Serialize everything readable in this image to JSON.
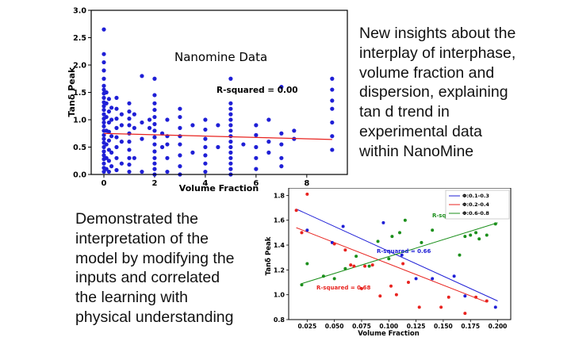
{
  "text_right": [
    "New insights about the",
    "interplay of interphase,",
    "volume fraction and",
    "dispersion, explaining",
    "tan d trend in",
    "experimental data",
    "within NanoMine"
  ],
  "text_left": [
    "Demonstrated the",
    "interpretation of the",
    "model by modifying the",
    "inputs and correlated",
    "the learning with",
    "physical understanding"
  ],
  "colors": {
    "blue": "#1f1fd6",
    "red": "#e8231f",
    "green": "#1b8f1b"
  },
  "chart_data": [
    {
      "type": "scatter",
      "annotation": "Nanomine Data",
      "xlabel": "Volume Fraction",
      "ylabel": "Tanδ Peak",
      "xlim": [
        -0.5,
        9.6
      ],
      "ylim": [
        0.0,
        3.0
      ],
      "xticks": [
        "0",
        "2",
        "4",
        "6",
        "8"
      ],
      "yticks": [
        "0.0",
        "0.5",
        "1.0",
        "1.5",
        "2.0",
        "2.5",
        "3.0"
      ],
      "grid": false,
      "fit_label": "R-squared = 0.00",
      "fit_line": {
        "x0": 0.0,
        "y0": 0.75,
        "x1": 9.0,
        "y1": 0.64
      },
      "series": [
        {
          "color": "blue",
          "points": [
            [
              0,
              0.05
            ],
            [
              0,
              0.12
            ],
            [
              0,
              0.2
            ],
            [
              0,
              0.28
            ],
            [
              0,
              0.35
            ],
            [
              0,
              0.42
            ],
            [
              0,
              0.5
            ],
            [
              0,
              0.58
            ],
            [
              0,
              0.65
            ],
            [
              0,
              0.72
            ],
            [
              0,
              0.8
            ],
            [
              0,
              0.88
            ],
            [
              0,
              0.95
            ],
            [
              0,
              1.02
            ],
            [
              0,
              1.1
            ],
            [
              0,
              1.18
            ],
            [
              0,
              1.25
            ],
            [
              0,
              1.32
            ],
            [
              0,
              1.4
            ],
            [
              0,
              1.48
            ],
            [
              0,
              1.55
            ],
            [
              0,
              1.62
            ],
            [
              0,
              1.75
            ],
            [
              0,
              1.9
            ],
            [
              0,
              2.05
            ],
            [
              0,
              2.2
            ],
            [
              0,
              2.65
            ],
            [
              0.1,
              0.1
            ],
            [
              0.1,
              0.3
            ],
            [
              0.1,
              0.55
            ],
            [
              0.1,
              0.8
            ],
            [
              0.1,
              1.05
            ],
            [
              0.1,
              1.3
            ],
            [
              0.1,
              1.5
            ],
            [
              0.2,
              0.05
            ],
            [
              0.2,
              0.25
            ],
            [
              0.2,
              0.45
            ],
            [
              0.2,
              0.62
            ],
            [
              0.2,
              0.78
            ],
            [
              0.2,
              0.95
            ],
            [
              0.2,
              1.15
            ],
            [
              0.2,
              1.38
            ],
            [
              0.3,
              0.15
            ],
            [
              0.3,
              0.4
            ],
            [
              0.3,
              0.7
            ],
            [
              0.3,
              1.0
            ],
            [
              0.3,
              1.22
            ],
            [
              0.5,
              0.08
            ],
            [
              0.5,
              0.3
            ],
            [
              0.5,
              0.5
            ],
            [
              0.5,
              0.68
            ],
            [
              0.5,
              0.85
            ],
            [
              0.5,
              1.02
            ],
            [
              0.5,
              1.2
            ],
            [
              0.5,
              1.4
            ],
            [
              0.7,
              0.2
            ],
            [
              0.7,
              0.6
            ],
            [
              0.7,
              0.9
            ],
            [
              0.7,
              1.1
            ],
            [
              1,
              0.05
            ],
            [
              1,
              0.18
            ],
            [
              1,
              0.3
            ],
            [
              1,
              0.45
            ],
            [
              1,
              0.6
            ],
            [
              1,
              0.75
            ],
            [
              1,
              0.9
            ],
            [
              1,
              1.02
            ],
            [
              1,
              1.15
            ],
            [
              1,
              1.3
            ],
            [
              1.2,
              0.3
            ],
            [
              1.2,
              0.85
            ],
            [
              1.2,
              1.1
            ],
            [
              1.5,
              0.05
            ],
            [
              1.5,
              0.65
            ],
            [
              1.5,
              0.95
            ],
            [
              1.5,
              1.8
            ],
            [
              1.8,
              0.85
            ],
            [
              1.8,
              1.0
            ],
            [
              2,
              0.0
            ],
            [
              2,
              0.1
            ],
            [
              2,
              0.2
            ],
            [
              2,
              0.3
            ],
            [
              2,
              0.42
            ],
            [
              2,
              0.55
            ],
            [
              2,
              0.68
            ],
            [
              2,
              0.8
            ],
            [
              2,
              0.92
            ],
            [
              2,
              1.05
            ],
            [
              2,
              1.18
            ],
            [
              2,
              1.3
            ],
            [
              2,
              1.45
            ],
            [
              2,
              1.75
            ],
            [
              2.3,
              0.5
            ],
            [
              2.3,
              0.75
            ],
            [
              2.5,
              0.05
            ],
            [
              2.5,
              0.3
            ],
            [
              2.5,
              0.55
            ],
            [
              2.5,
              0.7
            ],
            [
              2.5,
              1.0
            ],
            [
              3,
              0.0
            ],
            [
              3,
              0.15
            ],
            [
              3,
              0.35
            ],
            [
              3,
              0.55
            ],
            [
              3,
              0.7
            ],
            [
              3,
              0.85
            ],
            [
              3,
              1.05
            ],
            [
              3,
              1.2
            ],
            [
              3.5,
              0.4
            ],
            [
              3.5,
              0.9
            ],
            [
              4,
              0.05
            ],
            [
              4,
              0.2
            ],
            [
              4,
              0.35
            ],
            [
              4,
              0.5
            ],
            [
              4,
              0.65
            ],
            [
              4,
              0.82
            ],
            [
              4,
              1.0
            ],
            [
              4.5,
              0.5
            ],
            [
              4.5,
              0.9
            ],
            [
              5,
              0.0
            ],
            [
              5,
              0.1
            ],
            [
              5,
              0.2
            ],
            [
              5,
              0.3
            ],
            [
              5,
              0.4
            ],
            [
              5,
              0.5
            ],
            [
              5,
              0.6
            ],
            [
              5,
              0.7
            ],
            [
              5,
              0.8
            ],
            [
              5,
              0.9
            ],
            [
              5,
              1.0
            ],
            [
              5,
              1.1
            ],
            [
              5,
              1.2
            ],
            [
              5,
              1.3
            ],
            [
              5,
              1.75
            ],
            [
              5.5,
              0.55
            ],
            [
              6,
              0.1
            ],
            [
              6,
              0.3
            ],
            [
              6,
              0.5
            ],
            [
              6,
              0.72
            ],
            [
              6,
              0.9
            ],
            [
              6.5,
              0.4
            ],
            [
              6.5,
              0.6
            ],
            [
              6.5,
              1.0
            ],
            [
              7,
              0.15
            ],
            [
              7,
              0.3
            ],
            [
              7,
              0.55
            ],
            [
              7,
              0.75
            ],
            [
              7,
              1.6
            ],
            [
              7.5,
              0.65
            ],
            [
              7.5,
              0.8
            ],
            [
              9,
              0.45
            ],
            [
              9,
              0.7
            ],
            [
              9,
              0.95
            ],
            [
              9,
              1.2
            ],
            [
              9,
              1.35
            ],
            [
              9,
              1.55
            ],
            [
              9,
              1.75
            ]
          ]
        }
      ]
    },
    {
      "type": "scatter",
      "xlabel": "Volume Fraction",
      "ylabel": "Tanδ Peak",
      "xlim": [
        0.008,
        0.212
      ],
      "ylim": [
        0.8,
        1.86
      ],
      "xticks": [
        "0.025",
        "0.050",
        "0.075",
        "0.100",
        "0.125",
        "0.150",
        "0.175",
        "0.200"
      ],
      "yticks": [
        "0.8",
        "1.0",
        "1.2",
        "1.4",
        "1.6",
        "1.8"
      ],
      "legend_position": "top-right",
      "series": [
        {
          "name": "Φ:0.1-0.3",
          "color": "blue",
          "r2_label": "R-squared = 0.66",
          "fit": {
            "x0": 0.015,
            "y0": 1.69,
            "x1": 0.2,
            "y1": 0.95
          },
          "points": [
            [
              0.025,
              1.52
            ],
            [
              0.048,
              1.42
            ],
            [
              0.058,
              1.55
            ],
            [
              0.095,
              1.58
            ],
            [
              0.112,
              1.32
            ],
            [
              0.125,
              1.13
            ],
            [
              0.14,
              1.13
            ],
            [
              0.16,
              1.15
            ],
            [
              0.17,
              0.99
            ],
            [
              0.198,
              0.9
            ]
          ]
        },
        {
          "name": "Φ:0.2-0.4",
          "color": "red",
          "r2_label": "R-squared = 0.68",
          "fit": {
            "x0": 0.015,
            "y0": 1.54,
            "x1": 0.19,
            "y1": 0.94
          },
          "points": [
            [
              0.015,
              1.68
            ],
            [
              0.02,
              1.5
            ],
            [
              0.025,
              1.81
            ],
            [
              0.05,
              1.41
            ],
            [
              0.06,
              1.36
            ],
            [
              0.065,
              1.24
            ],
            [
              0.068,
              1.23
            ],
            [
              0.075,
              1.05
            ],
            [
              0.078,
              1.23
            ],
            [
              0.085,
              1.24
            ],
            [
              0.092,
              0.99
            ],
            [
              0.102,
              1.07
            ],
            [
              0.107,
              1.0
            ],
            [
              0.113,
              1.25
            ],
            [
              0.118,
              1.1
            ],
            [
              0.128,
              0.9
            ],
            [
              0.148,
              0.9
            ],
            [
              0.155,
              0.98
            ],
            [
              0.17,
              0.85
            ],
            [
              0.18,
              0.98
            ],
            [
              0.19,
              0.95
            ]
          ]
        },
        {
          "name": "Φ:0.6-0.8",
          "color": "green",
          "r2_label": "R-squared = 0.63",
          "fit": {
            "x0": 0.02,
            "y0": 1.09,
            "x1": 0.2,
            "y1": 1.58
          },
          "points": [
            [
              0.02,
              1.08
            ],
            [
              0.025,
              1.25
            ],
            [
              0.04,
              1.15
            ],
            [
              0.05,
              1.13
            ],
            [
              0.06,
              1.21
            ],
            [
              0.07,
              1.31
            ],
            [
              0.082,
              1.23
            ],
            [
              0.09,
              1.43
            ],
            [
              0.1,
              1.29
            ],
            [
              0.103,
              1.47
            ],
            [
              0.11,
              1.5
            ],
            [
              0.115,
              1.6
            ],
            [
              0.13,
              1.42
            ],
            [
              0.14,
              1.52
            ],
            [
              0.165,
              1.32
            ],
            [
              0.17,
              1.47
            ],
            [
              0.175,
              1.48
            ],
            [
              0.18,
              1.5
            ],
            [
              0.183,
              1.45
            ],
            [
              0.19,
              1.48
            ],
            [
              0.198,
              1.57
            ]
          ]
        }
      ]
    }
  ]
}
